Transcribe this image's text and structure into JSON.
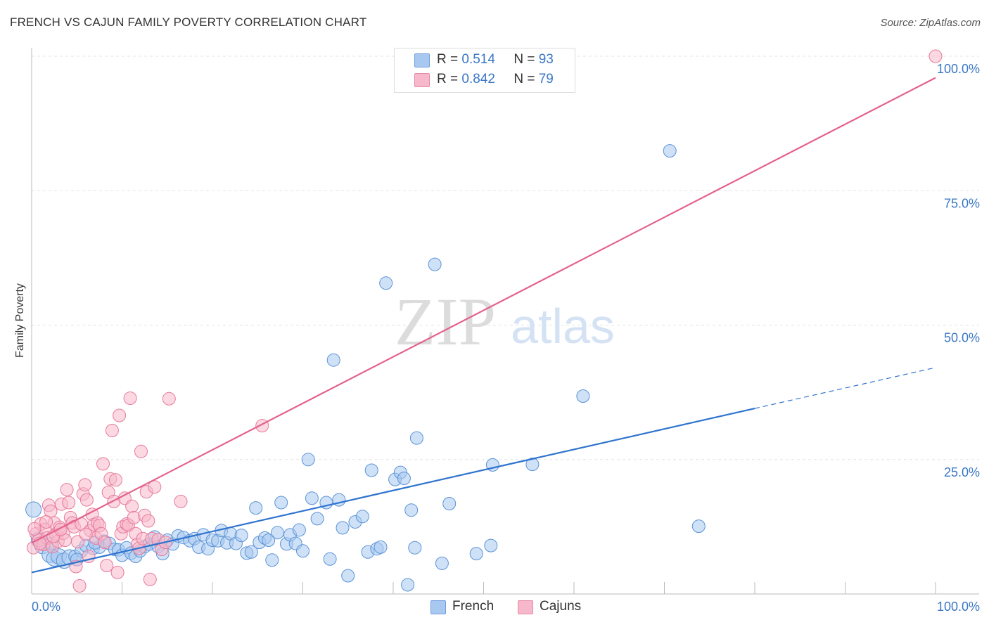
{
  "header": {
    "title": "FRENCH VS CAJUN FAMILY POVERTY CORRELATION CHART",
    "source": "Source: ZipAtlas.com"
  },
  "watermark": {
    "zip": "ZIP",
    "atlas": "atlas"
  },
  "legend": {
    "r_label": "R =",
    "n_label": "N =",
    "rows": [
      {
        "r": "0.514",
        "n": "93",
        "color": "#a8c8f0"
      },
      {
        "r": "0.842",
        "n": "79",
        "color": "#f7b8cb"
      }
    ]
  },
  "chart_data": {
    "type": "scatter",
    "title": "FRENCH VS CAJUN FAMILY POVERTY CORRELATION CHART",
    "xlabel": "",
    "ylabel": "Family Poverty",
    "xlim": [
      0,
      100
    ],
    "ylim": [
      0,
      100
    ],
    "x_tick_labels": [
      "0.0%",
      "100.0%"
    ],
    "y_tick_labels": [
      {
        "value": 25,
        "label": "25.0%"
      },
      {
        "value": 50,
        "label": "50.0%"
      },
      {
        "value": 75,
        "label": "75.0%"
      },
      {
        "value": 100,
        "label": "100.0%"
      }
    ],
    "grid": true,
    "legend_position": "bottom-center",
    "series": [
      {
        "name": "French",
        "color": "#a8c8f0",
        "stroke": "#5b93d6",
        "trend": {
          "x0": 0,
          "y0": 4.0,
          "x1": 80,
          "y1": 34.5,
          "dash_to_x": 100,
          "dash_to_y": 42.1,
          "color": "#2f74cf"
        },
        "points": [
          [
            0.2,
            15.7
          ],
          [
            0.8,
            10.1
          ],
          [
            1.2,
            8.9
          ],
          [
            2.0,
            7.3
          ],
          [
            2.5,
            6.6
          ],
          [
            3.0,
            7.0
          ],
          [
            3.6,
            6.2
          ],
          [
            4.2,
            6.8
          ],
          [
            4.8,
            7.0
          ],
          [
            5.5,
            8.0
          ],
          [
            6.0,
            9.0
          ],
          [
            6.8,
            8.5
          ],
          [
            7.5,
            8.7
          ],
          [
            8.0,
            9.8
          ],
          [
            8.6,
            9.4
          ],
          [
            9.2,
            8.3
          ],
          [
            9.6,
            8.2
          ],
          [
            10.0,
            7.2
          ],
          [
            10.5,
            8.6
          ],
          [
            11.0,
            7.6
          ],
          [
            11.5,
            7.0
          ],
          [
            12.0,
            8.0
          ],
          [
            12.5,
            8.8
          ],
          [
            13.0,
            9.3
          ],
          [
            13.6,
            10.6
          ],
          [
            14.0,
            8.8
          ],
          [
            14.5,
            7.5
          ],
          [
            15.0,
            10.0
          ],
          [
            15.6,
            9.3
          ],
          [
            16.2,
            10.8
          ],
          [
            16.8,
            10.5
          ],
          [
            17.5,
            9.9
          ],
          [
            18.0,
            10.3
          ],
          [
            18.5,
            8.7
          ],
          [
            19.0,
            11.0
          ],
          [
            19.5,
            8.4
          ],
          [
            20.0,
            10.0
          ],
          [
            20.6,
            9.9
          ],
          [
            21.0,
            11.8
          ],
          [
            21.6,
            9.5
          ],
          [
            22.0,
            11.2
          ],
          [
            22.6,
            9.4
          ],
          [
            23.2,
            10.9
          ],
          [
            23.8,
            7.6
          ],
          [
            24.3,
            7.8
          ],
          [
            24.8,
            16.0
          ],
          [
            25.2,
            9.6
          ],
          [
            25.8,
            10.4
          ],
          [
            26.2,
            10.0
          ],
          [
            26.6,
            6.3
          ],
          [
            27.2,
            11.4
          ],
          [
            27.6,
            17.0
          ],
          [
            28.2,
            9.3
          ],
          [
            28.6,
            11.0
          ],
          [
            29.2,
            9.4
          ],
          [
            29.6,
            11.9
          ],
          [
            30.0,
            8.0
          ],
          [
            30.6,
            25.0
          ],
          [
            31.0,
            17.8
          ],
          [
            31.6,
            14.0
          ],
          [
            32.6,
            17.0
          ],
          [
            33.0,
            6.5
          ],
          [
            33.4,
            43.5
          ],
          [
            34.0,
            17.5
          ],
          [
            34.4,
            12.3
          ],
          [
            35.0,
            3.4
          ],
          [
            35.8,
            13.4
          ],
          [
            36.6,
            14.4
          ],
          [
            37.2,
            7.8
          ],
          [
            37.6,
            23.0
          ],
          [
            38.2,
            8.4
          ],
          [
            38.6,
            8.7
          ],
          [
            39.2,
            57.8
          ],
          [
            40.2,
            21.3
          ],
          [
            40.8,
            22.6
          ],
          [
            41.2,
            21.5
          ],
          [
            41.6,
            1.7
          ],
          [
            42.0,
            15.6
          ],
          [
            42.4,
            8.6
          ],
          [
            42.6,
            29.0
          ],
          [
            44.6,
            61.3
          ],
          [
            45.4,
            5.7
          ],
          [
            46.2,
            16.8
          ],
          [
            49.2,
            7.5
          ],
          [
            50.8,
            9.0
          ],
          [
            51.0,
            24.0
          ],
          [
            55.4,
            24.1
          ],
          [
            61.0,
            36.8
          ],
          [
            70.6,
            82.4
          ],
          [
            73.8,
            12.6
          ],
          [
            2.2,
            9.4
          ],
          [
            5.0,
            6.4
          ],
          [
            7.0,
            9.5
          ]
        ]
      },
      {
        "name": "Cajuns",
        "color": "#f7b8cb",
        "stroke": "#e77a9c",
        "trend": {
          "x0": 0,
          "y0": 9.5,
          "x1": 100,
          "y1": 96.0,
          "color": "#e4628c"
        },
        "points": [
          [
            0.2,
            8.6
          ],
          [
            0.5,
            11.2
          ],
          [
            0.8,
            10.0
          ],
          [
            1.0,
            13.0
          ],
          [
            1.3,
            9.2
          ],
          [
            1.5,
            12.0
          ],
          [
            1.7,
            10.4
          ],
          [
            1.9,
            16.5
          ],
          [
            2.1,
            15.4
          ],
          [
            2.3,
            8.8
          ],
          [
            2.5,
            13.2
          ],
          [
            2.7,
            11.0
          ],
          [
            2.9,
            9.8
          ],
          [
            3.1,
            12.4
          ],
          [
            3.3,
            16.7
          ],
          [
            3.5,
            11.3
          ],
          [
            3.7,
            10.0
          ],
          [
            3.9,
            19.4
          ],
          [
            4.1,
            17.0
          ],
          [
            4.3,
            14.2
          ],
          [
            4.5,
            13.2
          ],
          [
            4.7,
            12.5
          ],
          [
            4.9,
            5.1
          ],
          [
            5.1,
            9.7
          ],
          [
            5.3,
            1.5
          ],
          [
            5.5,
            13.0
          ],
          [
            5.7,
            18.6
          ],
          [
            5.9,
            20.3
          ],
          [
            6.1,
            17.5
          ],
          [
            6.3,
            7.0
          ],
          [
            6.5,
            11.8
          ],
          [
            6.7,
            14.8
          ],
          [
            6.9,
            12.9
          ],
          [
            7.1,
            10.4
          ],
          [
            7.3,
            13.2
          ],
          [
            7.5,
            12.7
          ],
          [
            7.7,
            11.2
          ],
          [
            7.9,
            24.2
          ],
          [
            8.1,
            9.6
          ],
          [
            8.3,
            5.3
          ],
          [
            8.5,
            18.9
          ],
          [
            8.7,
            21.4
          ],
          [
            8.9,
            30.4
          ],
          [
            9.1,
            17.2
          ],
          [
            9.3,
            21.2
          ],
          [
            9.5,
            4.0
          ],
          [
            9.7,
            33.2
          ],
          [
            9.9,
            11.2
          ],
          [
            10.1,
            12.5
          ],
          [
            10.3,
            17.8
          ],
          [
            10.5,
            13.0
          ],
          [
            10.7,
            12.8
          ],
          [
            10.9,
            36.4
          ],
          [
            11.1,
            16.3
          ],
          [
            11.3,
            14.2
          ],
          [
            11.5,
            11.2
          ],
          [
            11.7,
            9.2
          ],
          [
            11.9,
            8.5
          ],
          [
            12.1,
            26.5
          ],
          [
            12.3,
            10.3
          ],
          [
            12.5,
            14.6
          ],
          [
            12.7,
            19.0
          ],
          [
            12.9,
            13.6
          ],
          [
            13.1,
            2.7
          ],
          [
            13.3,
            10.3
          ],
          [
            13.6,
            19.9
          ],
          [
            14.0,
            10.1
          ],
          [
            14.4,
            8.3
          ],
          [
            14.8,
            9.6
          ],
          [
            15.2,
            36.3
          ],
          [
            16.5,
            17.2
          ],
          [
            25.5,
            31.3
          ],
          [
            100.0,
            100.0
          ],
          [
            0.3,
            12.1
          ],
          [
            0.9,
            9.4
          ],
          [
            1.6,
            13.4
          ],
          [
            2.4,
            10.7
          ],
          [
            3.2,
            12.0
          ],
          [
            6.0,
            11.1
          ]
        ]
      }
    ]
  },
  "bottom_legend": [
    {
      "label": "French",
      "color": "#a8c8f0"
    },
    {
      "label": "Cajuns",
      "color": "#f7b8cb"
    }
  ]
}
